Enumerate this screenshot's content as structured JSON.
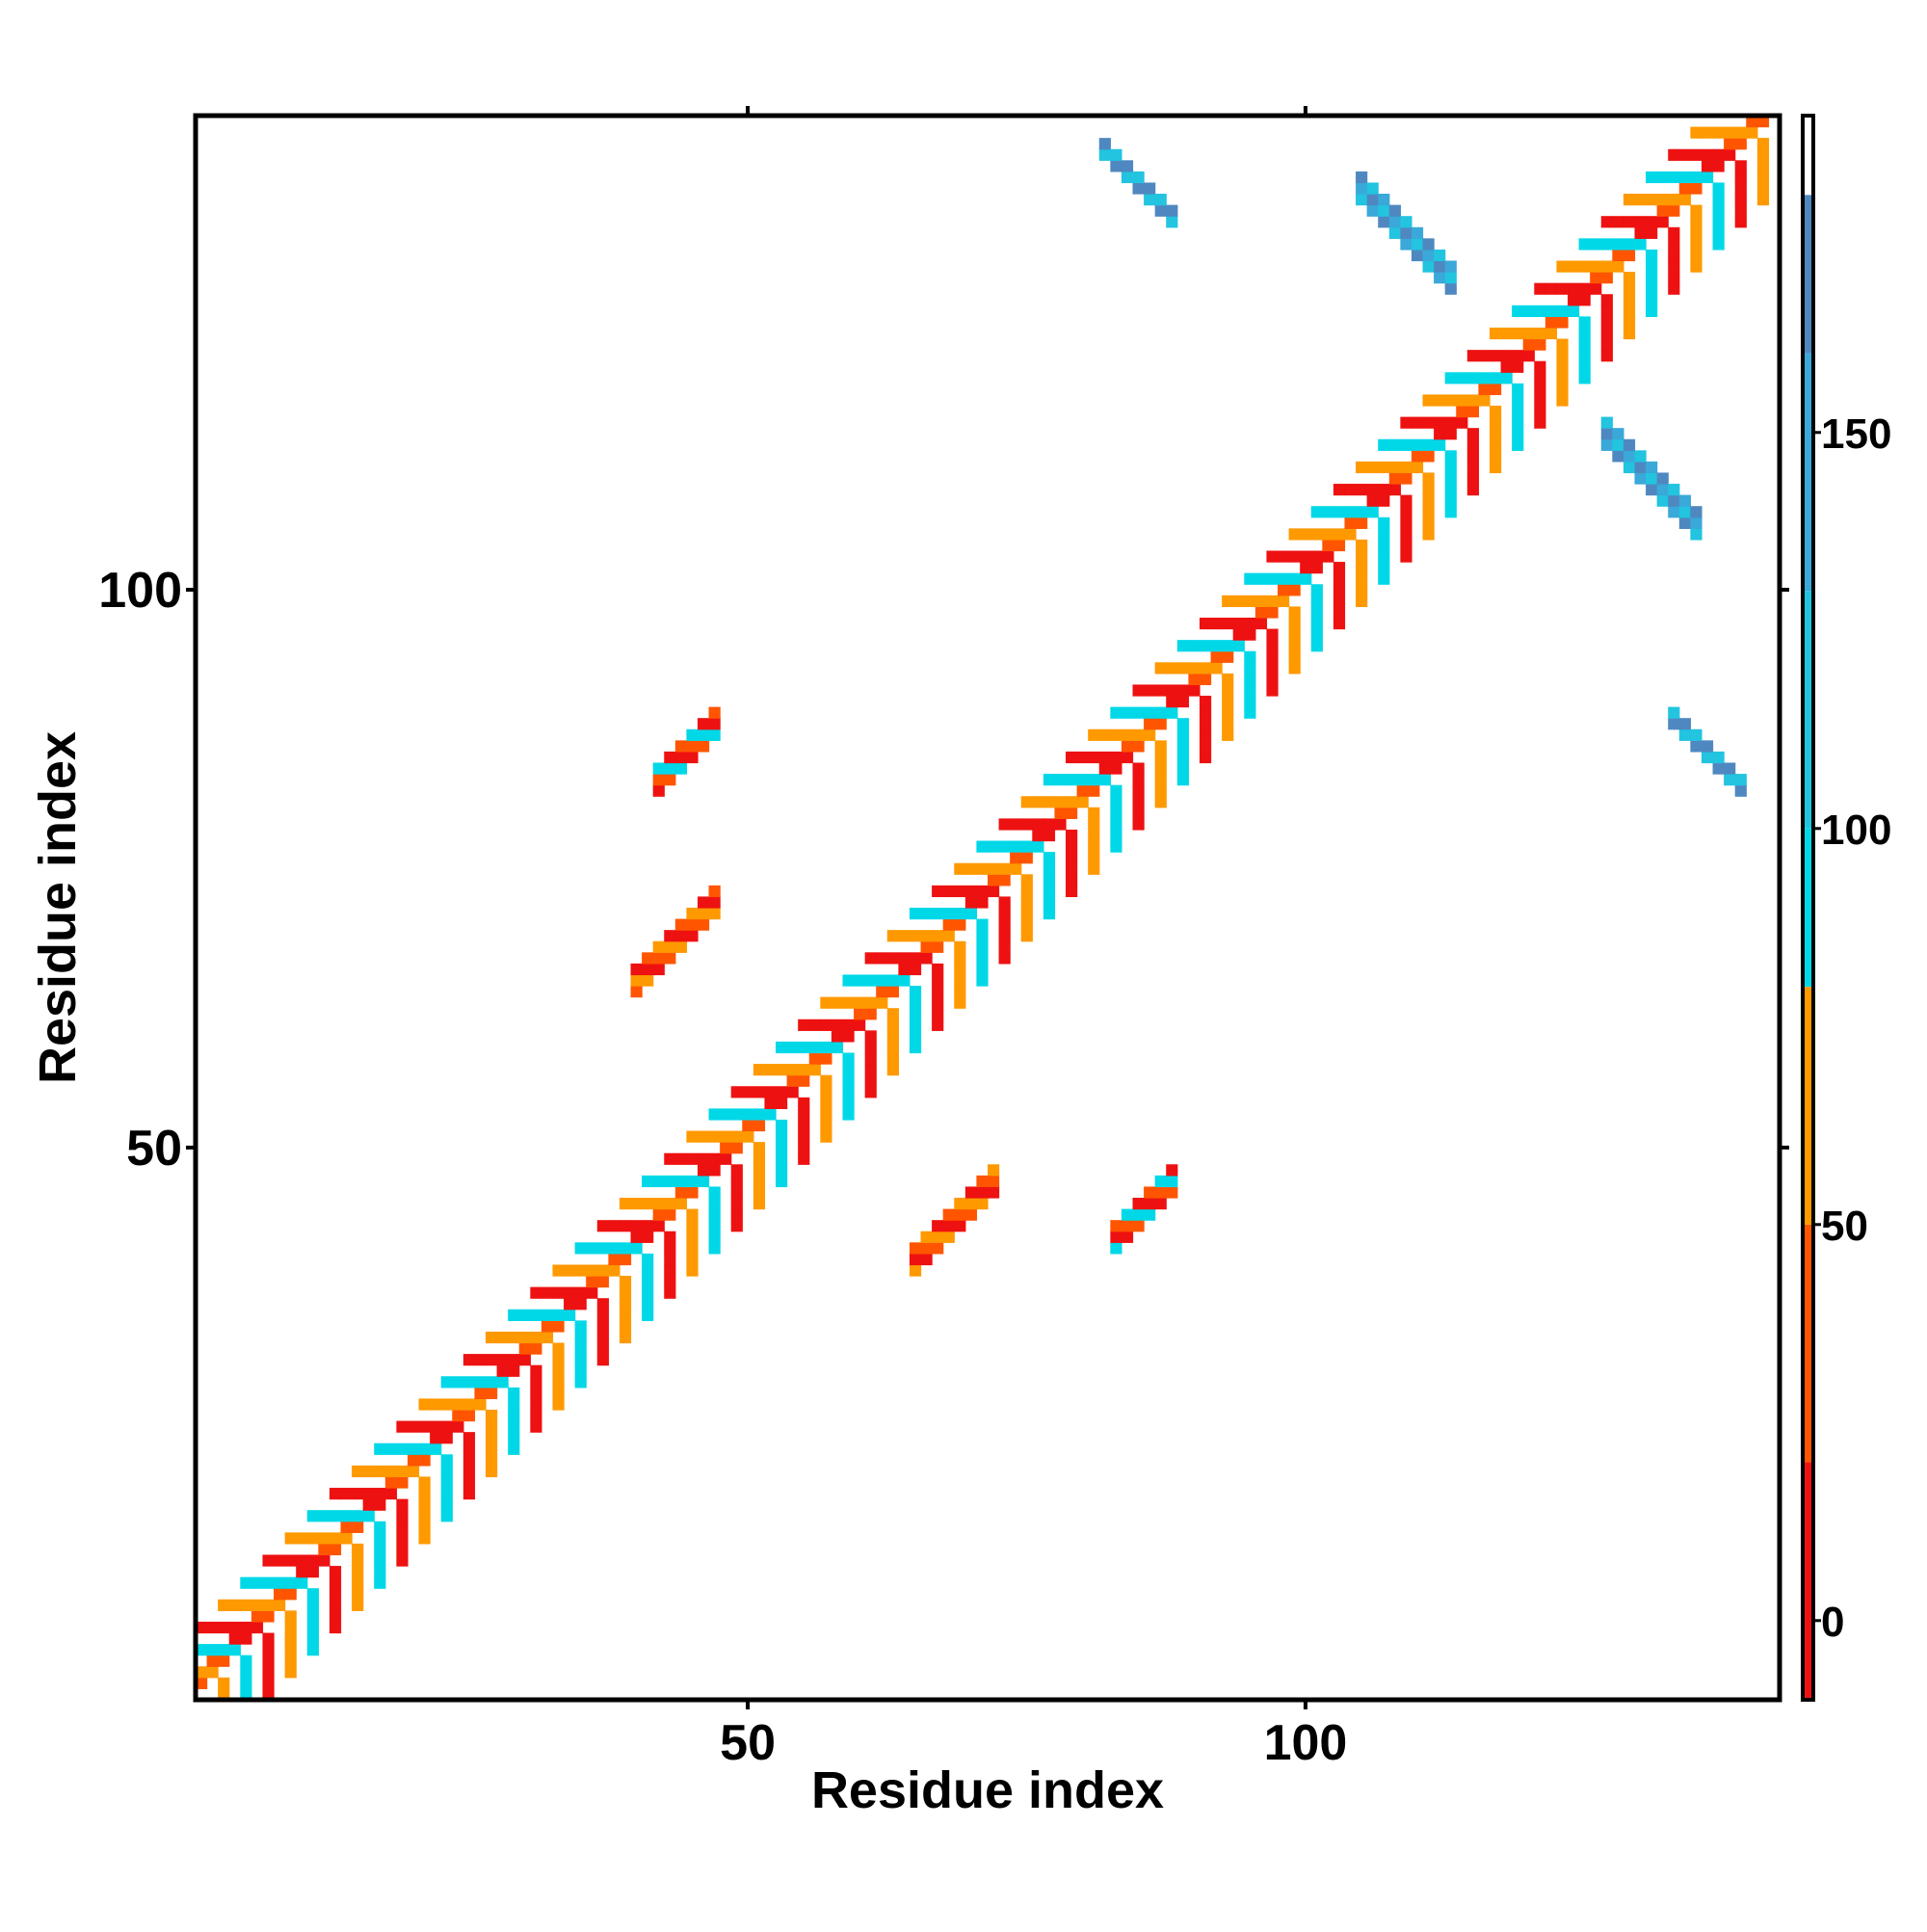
{
  "chart_data": {
    "type": "heatmap",
    "title": "",
    "xlabel": "Residue index",
    "ylabel": "Residue index",
    "x_range": [
      1,
      142
    ],
    "y_range": [
      1,
      142
    ],
    "x_ticks": [
      50,
      100
    ],
    "y_ticks": [
      50,
      100
    ],
    "colorbar": {
      "ticks": [
        0,
        50,
        100,
        150
      ],
      "range": [
        -10,
        190
      ],
      "bands": [
        {
          "from": -10,
          "to": 20,
          "color": "#ee1111"
        },
        {
          "from": 20,
          "to": 50,
          "color": "#ff5500"
        },
        {
          "from": 50,
          "to": 80,
          "color": "#ff9900"
        },
        {
          "from": 80,
          "to": 100,
          "color": "#00d8e8"
        },
        {
          "from": 100,
          "to": 130,
          "color": "#22c4e0"
        },
        {
          "from": 130,
          "to": 160,
          "color": "#3aa8d8"
        },
        {
          "from": 160,
          "to": 180,
          "color": "#4f88c0"
        },
        {
          "from": 180,
          "to": 190,
          "color": "#ffffff"
        }
      ]
    },
    "contact_regions": [
      {
        "name": "diagonal-band",
        "shape": "diagonal",
        "i_range": [
          1,
          142
        ],
        "offsets": [
          1,
          2,
          3,
          4,
          5,
          6
        ],
        "values": [
          8,
          40,
          65,
          30,
          90,
          15
        ]
      },
      {
        "name": "antiparallel-sheet-A",
        "shape": "anti",
        "i_range": [
          105,
          113
        ],
        "j_sum": 240,
        "width": 3,
        "values": [
          125,
          145,
          170
        ]
      },
      {
        "name": "antiparallel-sheet-A-mirror",
        "shape": "anti",
        "i_range": [
          127,
          135
        ],
        "j_sum": 240,
        "width": 3,
        "values": [
          125,
          145,
          170
        ]
      },
      {
        "name": "antiparallel-sheet-B",
        "shape": "anti",
        "i_range": [
          82,
          88
        ],
        "j_sum": 221,
        "width": 2,
        "values": [
          110,
          170
        ]
      },
      {
        "name": "antiparallel-sheet-B-mirror",
        "shape": "anti",
        "i_range": [
          133,
          139
        ],
        "j_sum": 221,
        "width": 2,
        "values": [
          110,
          170
        ]
      },
      {
        "name": "parallel-contact-1",
        "shape": "para",
        "i_range": [
          42,
          47
        ],
        "j_offset": 41,
        "width": 3,
        "values": [
          10,
          40,
          95
        ]
      },
      {
        "name": "parallel-contact-1-mirror",
        "shape": "para",
        "i_range": [
          83,
          88
        ],
        "j_offset": -41,
        "width": 3,
        "values": [
          10,
          40,
          95
        ]
      },
      {
        "name": "parallel-contact-2",
        "shape": "para",
        "i_range": [
          40,
          47
        ],
        "j_offset": 25,
        "width": 3,
        "values": [
          12,
          45,
          70
        ]
      },
      {
        "name": "parallel-contact-2-mirror",
        "shape": "para",
        "i_range": [
          65,
          72
        ],
        "j_offset": -25,
        "width": 3,
        "values": [
          12,
          45,
          70
        ]
      }
    ]
  }
}
